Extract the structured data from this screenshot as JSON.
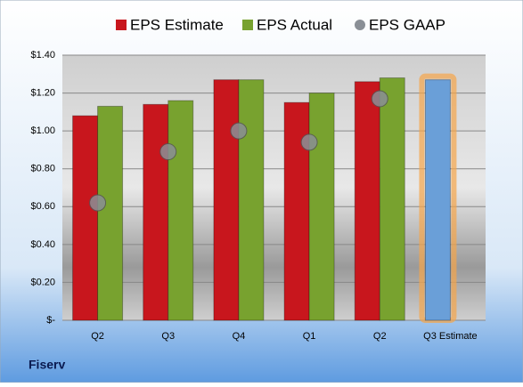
{
  "chart_data": {
    "type": "bar",
    "footer": "Fiserv",
    "categories": [
      "Q2",
      "Q3",
      "Q4",
      "Q1",
      "Q2",
      "Q3 Estimate"
    ],
    "series": [
      {
        "name": "EPS Estimate",
        "color": "#c8161d",
        "point_colors": [
          null,
          null,
          null,
          null,
          null,
          "#6a9fd8"
        ],
        "highlight_glow": "#f5a54a",
        "values": [
          1.08,
          1.14,
          1.27,
          1.15,
          1.26,
          1.27
        ]
      },
      {
        "name": "EPS Actual",
        "color": "#78a22f",
        "values": [
          1.13,
          1.16,
          1.27,
          1.2,
          1.28,
          null
        ]
      },
      {
        "name": "EPS GAAP",
        "type": "scatter",
        "color": "#8a8f96",
        "values": [
          0.62,
          0.89,
          1.0,
          0.94,
          1.17,
          null
        ]
      }
    ],
    "ylim": [
      0,
      1.4
    ],
    "yticks": [
      {
        "value": 0,
        "label": "$-"
      },
      {
        "value": 0.2,
        "label": "$0.20"
      },
      {
        "value": 0.4,
        "label": "$0.40"
      },
      {
        "value": 0.6,
        "label": "$0.60"
      },
      {
        "value": 0.8,
        "label": "$0.80"
      },
      {
        "value": 1.0,
        "label": "$1.00"
      },
      {
        "value": 1.2,
        "label": "$1.20"
      },
      {
        "value": 1.4,
        "label": "$1.40"
      }
    ],
    "grid": true,
    "legend": "top"
  }
}
